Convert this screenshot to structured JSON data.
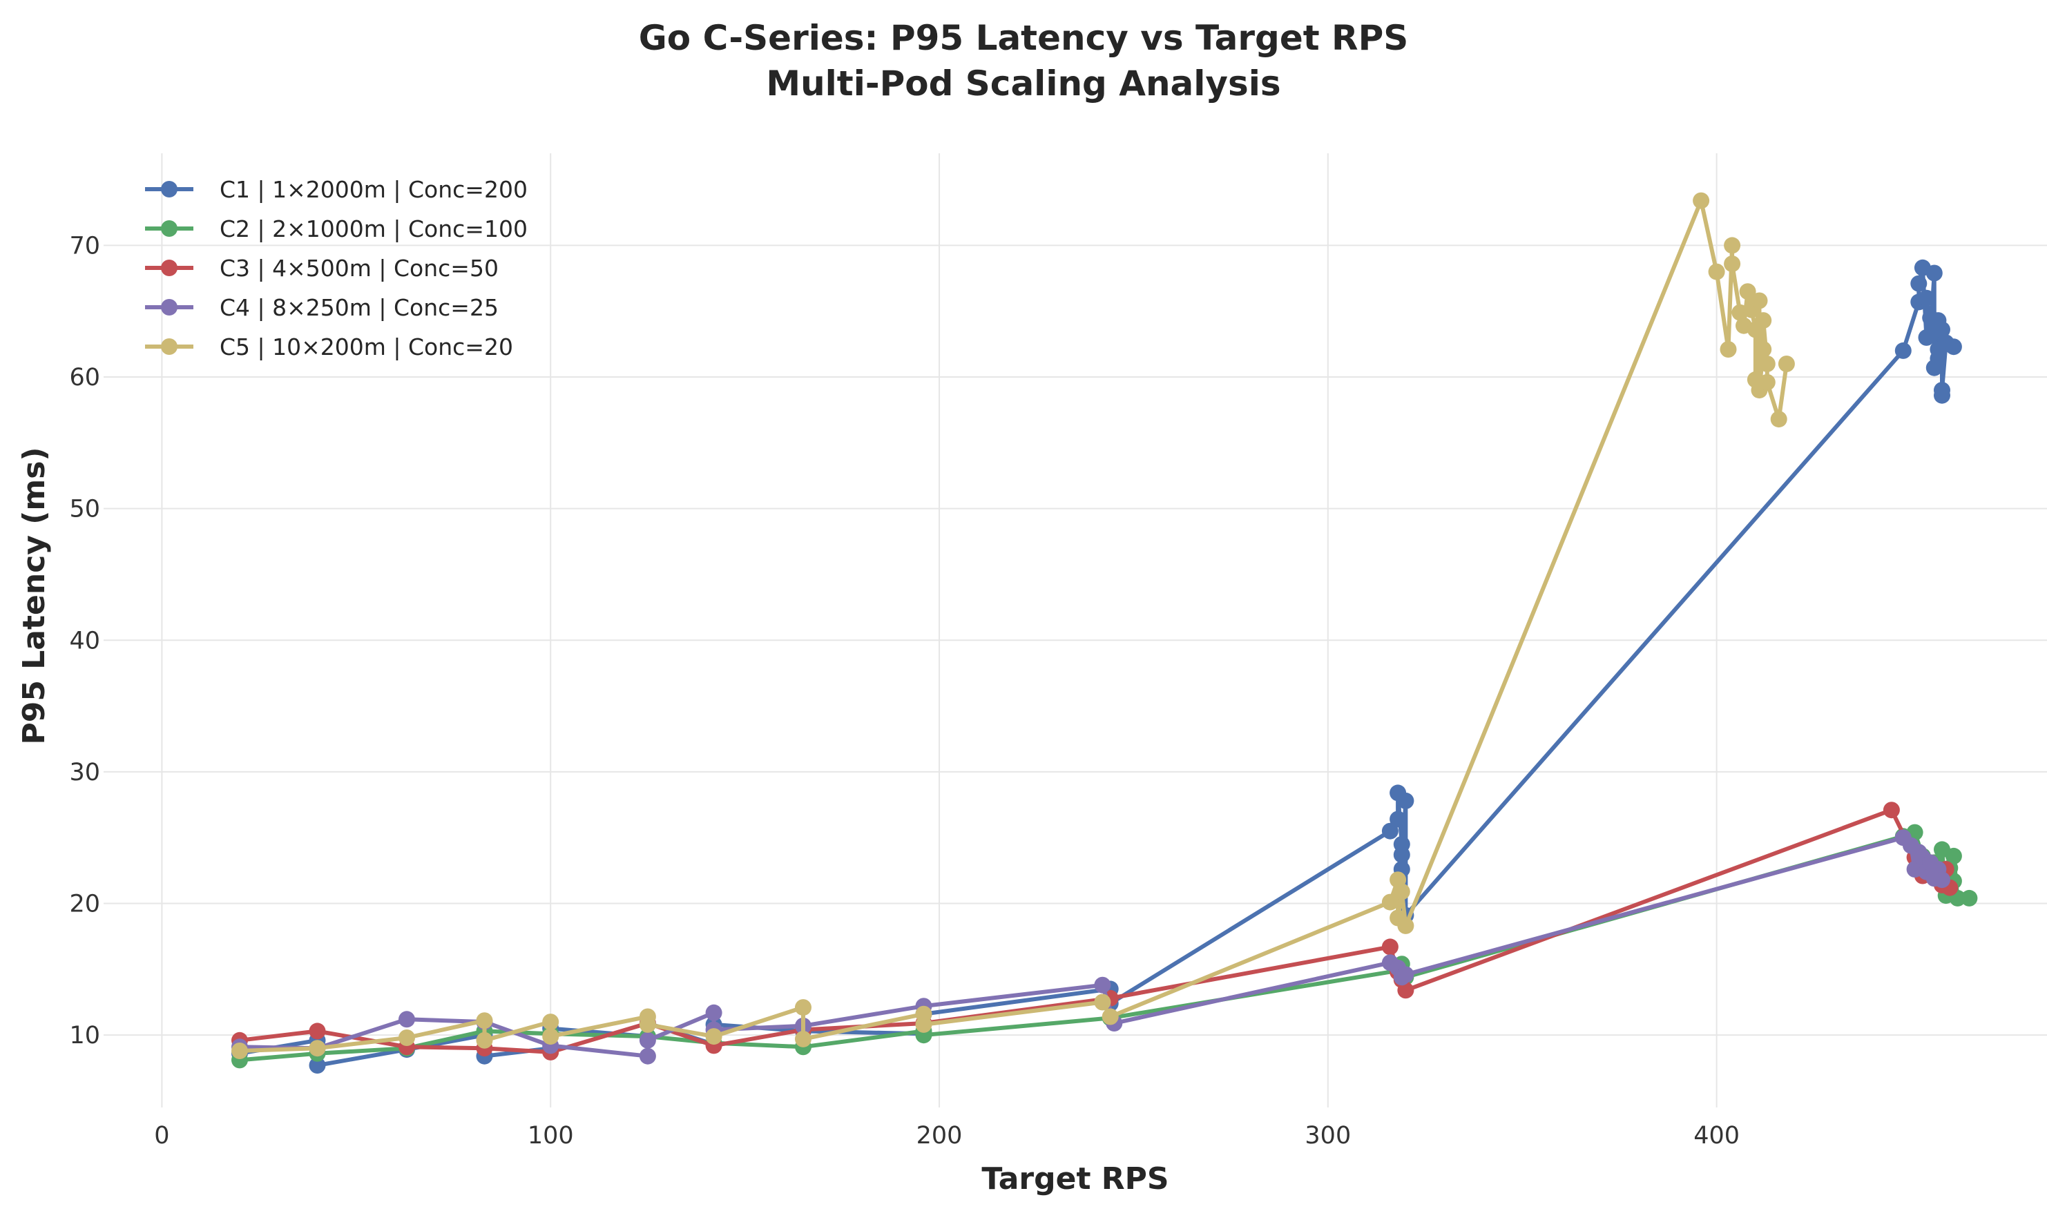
{
  "chart_data": {
    "type": "line",
    "title": "Go C-Series: P95 Latency vs Target RPS",
    "subtitle": "Multi-Pod Scaling Analysis",
    "xlabel": "Target RPS",
    "ylabel": "P95 Latency (ms)",
    "xlim": [
      -15,
      485
    ],
    "ylim": [
      4.5,
      77
    ],
    "xticks": [
      0,
      100,
      200,
      300,
      400
    ],
    "yticks": [
      10,
      20,
      30,
      40,
      50,
      60,
      70
    ],
    "grid": true,
    "legend_position": "top-left",
    "series": [
      {
        "name": "C1 | 1×2000m | Conc=200",
        "color": "#4c72b0",
        "points": [
          [
            20,
            8.6
          ],
          [
            40,
            9.6
          ],
          [
            40,
            7.7
          ],
          [
            63,
            8.9
          ],
          [
            83,
            10.0
          ],
          [
            83,
            8.4
          ],
          [
            100,
            9.0
          ],
          [
            100,
            10.5
          ],
          [
            125,
            9.9
          ],
          [
            125,
            10.9
          ],
          [
            142,
            9.3
          ],
          [
            142,
            10.8
          ],
          [
            165,
            10.3
          ],
          [
            196,
            10.1
          ],
          [
            196,
            11.6
          ],
          [
            244,
            13.5
          ],
          [
            244,
            12.4
          ],
          [
            316,
            25.5
          ],
          [
            318,
            26.4
          ],
          [
            318,
            28.4
          ],
          [
            319,
            24.5
          ],
          [
            319,
            23.7
          ],
          [
            319,
            22.6
          ],
          [
            320,
            27.8
          ],
          [
            320,
            19.1
          ],
          [
            448,
            62.0
          ],
          [
            452,
            65.7
          ],
          [
            452,
            67.1
          ],
          [
            453,
            68.3
          ],
          [
            454,
            63.0
          ],
          [
            454,
            66.0
          ],
          [
            455,
            64.5
          ],
          [
            455,
            63.2
          ],
          [
            456,
            67.9
          ],
          [
            456,
            60.7
          ],
          [
            457,
            64.3
          ],
          [
            457,
            62.1
          ],
          [
            457,
            61.4
          ],
          [
            458,
            63.6
          ],
          [
            458,
            58.6
          ],
          [
            458,
            59.0
          ],
          [
            459,
            62.6
          ],
          [
            461,
            62.3
          ]
        ]
      },
      {
        "name": "C2 | 2×1000m | Conc=100",
        "color": "#55a868",
        "points": [
          [
            20,
            8.1
          ],
          [
            40,
            8.6
          ],
          [
            63,
            9.0
          ],
          [
            83,
            10.3
          ],
          [
            100,
            10.1
          ],
          [
            125,
            9.9
          ],
          [
            142,
            9.4
          ],
          [
            165,
            9.1
          ],
          [
            196,
            10.3
          ],
          [
            196,
            10.0
          ],
          [
            244,
            11.3
          ],
          [
            318,
            14.9
          ],
          [
            319,
            15.4
          ],
          [
            320,
            14.4
          ],
          [
            448,
            25.1
          ],
          [
            451,
            25.4
          ],
          [
            453,
            23.6
          ],
          [
            456,
            23.1
          ],
          [
            458,
            24.1
          ],
          [
            459,
            20.6
          ],
          [
            460,
            22.7
          ],
          [
            461,
            21.7
          ],
          [
            461,
            23.6
          ],
          [
            462,
            20.4
          ],
          [
            465,
            20.4
          ]
        ]
      },
      {
        "name": "C3 | 4×500m | Conc=50",
        "color": "#c44e52",
        "points": [
          [
            20,
            9.6
          ],
          [
            40,
            10.3
          ],
          [
            63,
            9.1
          ],
          [
            83,
            9.0
          ],
          [
            100,
            8.7
          ],
          [
            125,
            10.9
          ],
          [
            142,
            9.2
          ],
          [
            165,
            10.4
          ],
          [
            196,
            10.9
          ],
          [
            244,
            12.8
          ],
          [
            316,
            16.7
          ],
          [
            318,
            14.8
          ],
          [
            319,
            14.2
          ],
          [
            320,
            13.4
          ],
          [
            445,
            27.1
          ],
          [
            451,
            23.5
          ],
          [
            453,
            22.1
          ],
          [
            455,
            23.1
          ],
          [
            457,
            22.5
          ],
          [
            458,
            21.4
          ],
          [
            459,
            22.6
          ],
          [
            460,
            21.2
          ]
        ]
      },
      {
        "name": "C4 | 8×250m | Conc=25",
        "color": "#8172b3",
        "points": [
          [
            20,
            9.1
          ],
          [
            40,
            9.0
          ],
          [
            63,
            11.2
          ],
          [
            83,
            11.0
          ],
          [
            100,
            9.2
          ],
          [
            125,
            8.4
          ],
          [
            125,
            9.6
          ],
          [
            142,
            11.7
          ],
          [
            142,
            10.4
          ],
          [
            165,
            10.7
          ],
          [
            196,
            12.2
          ],
          [
            242,
            13.8
          ],
          [
            245,
            10.9
          ],
          [
            316,
            15.5
          ],
          [
            318,
            15.1
          ],
          [
            319,
            14.4
          ],
          [
            320,
            14.6
          ],
          [
            448,
            25.0
          ],
          [
            450,
            24.4
          ],
          [
            451,
            22.6
          ],
          [
            452,
            23.9
          ],
          [
            453,
            23.5
          ],
          [
            454,
            22.4
          ],
          [
            455,
            23.1
          ],
          [
            456,
            21.9
          ],
          [
            457,
            22.6
          ],
          [
            458,
            21.8
          ]
        ]
      },
      {
        "name": "C5 | 10×200m | Conc=20",
        "color": "#ccb974",
        "points": [
          [
            20,
            8.8
          ],
          [
            40,
            9.0
          ],
          [
            63,
            9.8
          ],
          [
            83,
            11.1
          ],
          [
            83,
            9.6
          ],
          [
            100,
            11.0
          ],
          [
            100,
            9.9
          ],
          [
            125,
            11.4
          ],
          [
            125,
            10.8
          ],
          [
            142,
            9.9
          ],
          [
            165,
            12.1
          ],
          [
            165,
            9.7
          ],
          [
            196,
            11.6
          ],
          [
            196,
            10.8
          ],
          [
            242,
            12.5
          ],
          [
            244,
            11.4
          ],
          [
            316,
            20.1
          ],
          [
            318,
            21.8
          ],
          [
            318,
            18.9
          ],
          [
            319,
            20.9
          ],
          [
            320,
            18.3
          ],
          [
            396,
            73.4
          ],
          [
            400,
            68.0
          ],
          [
            403,
            62.1
          ],
          [
            404,
            70.0
          ],
          [
            404,
            68.6
          ],
          [
            406,
            64.9
          ],
          [
            407,
            63.9
          ],
          [
            408,
            66.5
          ],
          [
            409,
            65.1
          ],
          [
            410,
            63.6
          ],
          [
            410,
            59.8
          ],
          [
            411,
            65.8
          ],
          [
            411,
            59.0
          ],
          [
            412,
            62.1
          ],
          [
            412,
            64.3
          ],
          [
            413,
            61.0
          ],
          [
            413,
            59.6
          ],
          [
            416,
            56.8
          ],
          [
            418,
            61.0
          ]
        ]
      }
    ]
  }
}
